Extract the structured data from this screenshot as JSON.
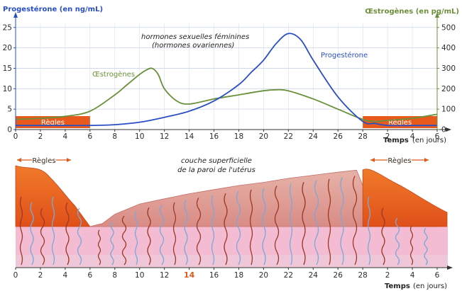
{
  "chart_data": [
    {
      "type": "line",
      "left_axis_label": "Progestérone (en ng/mL)",
      "right_axis_label": "Œstrogènes (en pg/mL)",
      "xlabel_main": "Temps",
      "xlabel_unit": "(en jours)",
      "left_ticks": [
        "0",
        "5",
        "10",
        "15",
        "20",
        "25"
      ],
      "right_ticks": [
        "0",
        "100",
        "200",
        "300",
        "400",
        "500"
      ],
      "x_ticks": [
        "0",
        "2",
        "4",
        "6",
        "8",
        "10",
        "12",
        "14",
        "16",
        "18",
        "20",
        "22",
        "24",
        "26",
        "28",
        "2",
        "4",
        "6"
      ],
      "ylim_left": [
        0,
        26
      ],
      "ylim_right": [
        0,
        520
      ],
      "xlim": [
        0,
        34
      ],
      "annotation": [
        "hormones sexuelles féminines",
        "(hormones ovariennes)"
      ],
      "series": [
        {
          "name": "Œstrogènes",
          "axis": "right",
          "color": "#6b8f3a",
          "x": [
            0,
            2,
            4,
            6,
            8,
            9,
            10,
            10.5,
            11,
            11.5,
            12,
            13,
            14,
            16,
            18,
            20,
            21,
            22,
            24,
            26,
            28,
            29,
            30,
            32,
            34
          ],
          "values": [
            50,
            55,
            65,
            90,
            170,
            220,
            270,
            290,
            300,
            270,
            200,
            140,
            125,
            150,
            170,
            190,
            195,
            190,
            150,
            100,
            50,
            40,
            45,
            55,
            75
          ]
        },
        {
          "name": "Progestérone",
          "axis": "left",
          "color": "#2a4fc4",
          "x": [
            0,
            2,
            4,
            6,
            8,
            10,
            12,
            14,
            16,
            18,
            19,
            20,
            21,
            22,
            23,
            24,
            26,
            28,
            29,
            30,
            32,
            34
          ],
          "values": [
            1,
            1,
            1,
            1,
            1.2,
            1.8,
            3,
            4.5,
            7,
            11,
            14,
            17,
            21,
            23.5,
            22,
            17,
            8,
            2,
            1.5,
            1,
            1,
            1
          ]
        }
      ],
      "regles_label": "Règles",
      "regles_periods": [
        [
          0,
          6
        ],
        [
          28,
          34
        ]
      ]
    },
    {
      "type": "diagram",
      "title_lines": [
        "couche superficielle",
        "de la paroi de l'utérus"
      ],
      "regles_label": "Règles",
      "x_ticks": [
        "0",
        "2",
        "4",
        "6",
        "8",
        "10",
        "12",
        "14",
        "16",
        "18",
        "20",
        "22",
        "24",
        "26",
        "28",
        "2",
        "4",
        "6"
      ],
      "highlight_tick": "14",
      "xlabel_main": "Temps",
      "xlabel_unit": "(en jours)"
    }
  ],
  "colors": {
    "estrogen": "#6b8f3a",
    "progesterone": "#2a4fc4",
    "regles": "#e85a1c",
    "pink": "#f4bcd2",
    "lining": "#e9a79f"
  }
}
